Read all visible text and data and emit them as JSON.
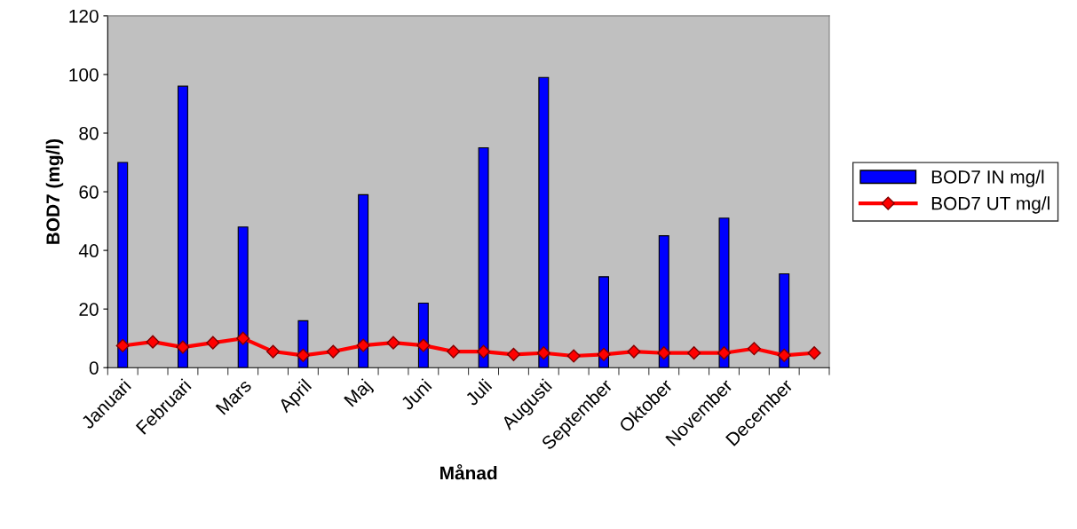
{
  "chart_data": {
    "type": "bar",
    "xlabel": "Månad",
    "ylabel": "BOD7 (mg/l)",
    "categories": [
      "Januari",
      null,
      "Februari",
      null,
      "Mars",
      null,
      "April",
      null,
      "Maj",
      null,
      "Juni",
      null,
      "Juli",
      null,
      "Augusti",
      null,
      "September",
      null,
      "Oktober",
      null,
      "November",
      null,
      "December",
      null
    ],
    "series": [
      {
        "name": "BOD7 IN mg/l",
        "color": "#0000ff",
        "values": [
          70,
          null,
          96,
          null,
          48,
          null,
          16,
          null,
          59,
          null,
          22,
          null,
          75,
          null,
          99,
          null,
          31,
          null,
          45,
          null,
          51,
          null,
          32,
          null
        ]
      },
      {
        "name": "BOD7 UT mg/l",
        "type": "line",
        "color": "#ff0000",
        "marker": "diamond",
        "values": [
          7.5,
          8.8,
          7,
          8.5,
          10,
          5.5,
          4.2,
          5.5,
          7.6,
          8.5,
          7.6,
          5.5,
          5.5,
          4.5,
          5,
          4,
          4.5,
          5.5,
          5,
          5,
          5,
          6.5,
          4.2,
          5
        ]
      }
    ],
    "ylim": [
      0,
      120
    ],
    "yticks": [
      0,
      20,
      40,
      60,
      80,
      100,
      120
    ],
    "grid": false,
    "legend": "right"
  }
}
